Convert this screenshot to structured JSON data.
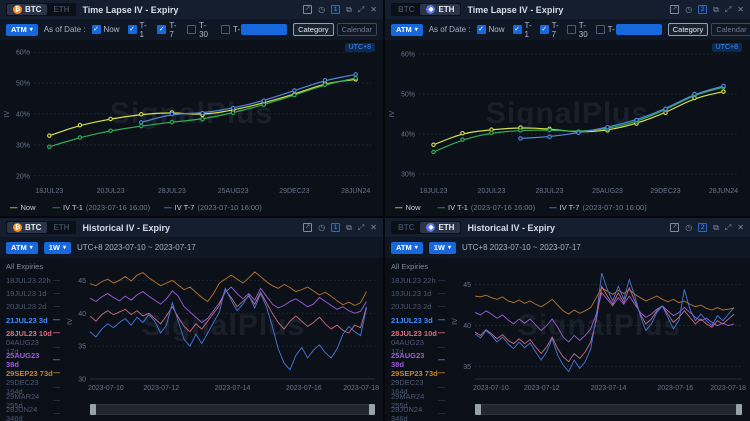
{
  "watermark": "SignalPlus",
  "icons": {
    "share": "↗",
    "history": "◷",
    "duplicate": "⧉",
    "fullscreen": "⤢",
    "close": "✕",
    "caret": "▾",
    "check": "✓",
    "dash": "—",
    "btc": "₿",
    "eth": "◆"
  },
  "panels": {
    "tl": {
      "tabs": {
        "btc": "BTC",
        "eth": "ETH"
      },
      "title": "Time Lapse IV - Expiry",
      "badge": "1",
      "toolbar": {
        "atm": "ATM",
        "as_of_label": "As of Date :",
        "checkboxes": [
          {
            "label": "Now",
            "checked": true
          },
          {
            "label": "T-1",
            "checked": true
          },
          {
            "label": "T-7",
            "checked": true
          },
          {
            "label": "T-30",
            "checked": false
          },
          {
            "label": "T-",
            "checked": false
          }
        ],
        "category": "Category",
        "calendar": "Calendar"
      },
      "utc": "UTC+8",
      "legend": [
        {
          "name": "Now",
          "date": "",
          "color": "#d7df4b"
        },
        {
          "name": "IV T-1",
          "date": "(2023-07-16 16:00)",
          "color": "#2fae55"
        },
        {
          "name": "IV T-7",
          "date": "(2023-07-10 16:00)",
          "color": "#4f87e0"
        }
      ],
      "chart_data": {
        "type": "line",
        "ylabel": "IV",
        "ylim": [
          18,
          62
        ],
        "yticks": [
          60,
          50,
          40,
          30,
          20
        ],
        "categories": [
          "18JUL23",
          "19JUL23",
          "20JUL23",
          "21JUL23",
          "28JUL23",
          "04AUG23",
          "25AUG23",
          "29SEP23",
          "29DEC23",
          "29MAR24",
          "28JUN24"
        ],
        "series": [
          {
            "name": "Now",
            "color": "#d7df4b",
            "values": [
              33.0,
              36.4,
              38.4,
              39.9,
              40.5,
              39.7,
              41.2,
              43.6,
              46.4,
              49.9,
              51.2
            ]
          },
          {
            "name": "IV T-1(2023-07-16 16:00)",
            "color": "#2fae55",
            "values": [
              29.4,
              32.4,
              34.6,
              36.1,
              37.4,
              38.3,
              40.4,
              43.0,
              46.1,
              49.5,
              51.6
            ]
          },
          {
            "name": "IV T-7(2023-07-10 16:00)",
            "color": "#4f87e0",
            "values": [
              null,
              null,
              null,
              37.3,
              40.0,
              40.3,
              41.9,
              44.3,
              47.6,
              50.9,
              52.8
            ]
          }
        ]
      }
    },
    "tr": {
      "tabs": {
        "btc": "BTC",
        "eth": "ETH"
      },
      "title": "Time Lapse IV - Expiry",
      "badge": "2",
      "toolbar": {
        "atm": "ATM",
        "as_of_label": "As of Date :",
        "checkboxes": [
          {
            "label": "Now",
            "checked": true
          },
          {
            "label": "T-1",
            "checked": true
          },
          {
            "label": "T-7",
            "checked": true
          },
          {
            "label": "T-30",
            "checked": false
          },
          {
            "label": "T-",
            "checked": false
          }
        ],
        "category": "Category",
        "calendar": "Calendar"
      },
      "utc": "UTC+8",
      "legend": [
        {
          "name": "Now",
          "date": "",
          "color": "#d7df4b"
        },
        {
          "name": "IV T-1",
          "date": "(2023-07-16 16:00)",
          "color": "#2fae55"
        },
        {
          "name": "IV T-7",
          "date": "(2023-07-10 16:00)",
          "color": "#4f87e0"
        }
      ],
      "chart_data": {
        "type": "line",
        "ylabel": "IV",
        "ylim": [
          28,
          62
        ],
        "yticks": [
          60,
          50,
          40,
          30
        ],
        "categories": [
          "18JUL23",
          "19JUL23",
          "20JUL23",
          "21JUL23",
          "28JUL23",
          "04AUG23",
          "25AUG23",
          "29SEP23",
          "29DEC23",
          "29MAR24",
          "28JUN24"
        ],
        "series": [
          {
            "name": "Now",
            "color": "#d7df4b",
            "values": [
              37.3,
              40.2,
              41.1,
              41.6,
              41.3,
              40.4,
              40.9,
              42.6,
              45.3,
              49.0,
              50.6
            ]
          },
          {
            "name": "IV T-1(2023-07-16 16:00)",
            "color": "#2fae55",
            "values": [
              35.5,
              38.6,
              40.3,
              40.9,
              41.0,
              40.6,
              41.3,
              43.1,
              46.0,
              49.8,
              51.7
            ]
          },
          {
            "name": "IV T-7(2023-07-10 16:00)",
            "color": "#4f87e0",
            "values": [
              null,
              null,
              null,
              38.9,
              39.3,
              40.3,
              41.7,
              43.5,
              46.3,
              50.0,
              52.0
            ]
          }
        ]
      }
    },
    "bl": {
      "tabs": {
        "btc": "BTC",
        "eth": "ETH"
      },
      "title": "Historical IV - Expiry",
      "badge": "1",
      "toolbar": {
        "atm": "ATM",
        "period": "1W",
        "range": "UTC+8 2023-07-10 ~ 2023-07-17"
      },
      "expiry_header": "All Expiries",
      "expiries": [
        {
          "label": "18JUL23 22h"
        },
        {
          "label": "19JUL23 1d"
        },
        {
          "label": "20JUL23 2d"
        },
        {
          "label": "21JUL23 3d",
          "color": "#3f8cff"
        },
        {
          "label": "28JUL23 10d",
          "color": "#e06a7a"
        },
        {
          "label": "04AUG23 17d"
        },
        {
          "label": "25AUG23 38d",
          "color": "#a05bd6"
        },
        {
          "label": "29SEP23 73d",
          "color": "#c8812e"
        },
        {
          "label": "29DEC23 164d"
        },
        {
          "label": "29MAR24 255d"
        },
        {
          "label": "28JUN24 346d"
        }
      ],
      "chart_data": {
        "type": "line",
        "ylabel": "IV",
        "ylim": [
          30,
          47.5
        ],
        "yticks": [
          45,
          40,
          35,
          30
        ],
        "x_ticks": [
          "2023-07-10",
          "2023-07-12",
          "2023-07-14",
          "2023-07-16",
          "2023-07-18"
        ],
        "series": [
          {
            "name": "29SEP23 73d",
            "color": "#b5752a",
            "values": [
              44.5,
              44.2,
              44.8,
              45.2,
              44.6,
              45.0,
              45.6,
              44.9,
              45.8,
              46.2,
              45.4,
              44.8,
              44.2,
              44.6,
              45.0,
              44.3,
              43.6,
              44.0,
              43.2,
              42.4,
              41.8,
              43.0,
              44.6,
              45.2,
              45.8,
              45.2,
              44.6,
              45.4,
              46.3,
              45.6,
              44.8,
              44.2,
              43.8,
              44.4,
              43.9,
              43.3,
              43.6,
              44.0,
              43.4,
              42.8,
              43.2,
              42.6,
              41.9,
              41.3,
              41.7,
              41.2,
              41.6,
              43.3
            ]
          },
          {
            "name": "25AUG23 38d",
            "color": "#9a5cd8",
            "values": [
              42.3,
              41.8,
              42.5,
              43.0,
              42.4,
              41.9,
              42.6,
              42.0,
              42.8,
              43.3,
              42.6,
              42.0,
              41.4,
              42.2,
              43.4,
              42.6,
              41.0,
              40.2,
              39.4,
              38.6,
              39.2,
              40.4,
              41.6,
              43.2,
              44.0,
              43.0,
              42.2,
              43.0,
              42.0,
              43.8,
              42.6,
              41.4,
              40.8,
              41.2,
              41.8,
              42.2,
              41.6,
              41.0,
              41.4,
              42.4,
              41.8,
              41.2,
              40.6,
              41.0,
              40.4,
              40.0,
              40.3,
              41.8
            ]
          },
          {
            "name": "28JUL23 10d",
            "color": "#c96a80",
            "values": [
              39.6,
              38.8,
              39.8,
              40.4,
              39.8,
              40.2,
              40.6,
              39.8,
              40.4,
              39.6,
              40.0,
              39.2,
              38.4,
              39.6,
              41.0,
              39.4,
              38.0,
              37.2,
              38.4,
              37.6,
              38.8,
              40.0,
              41.2,
              43.6,
              42.4,
              41.0,
              41.8,
              42.6,
              41.4,
              43.2,
              41.6,
              40.0,
              38.6,
              37.6,
              38.8,
              39.6,
              38.8,
              38.0,
              38.6,
              39.4,
              38.4,
              37.6,
              38.2,
              37.4,
              37.0,
              38.2,
              37.8,
              41.0
            ]
          },
          {
            "name": "21JUL23 3d",
            "color": "#4577de",
            "values": [
              37.2,
              36.4,
              37.6,
              38.4,
              37.8,
              38.6,
              39.2,
              38.2,
              39.4,
              38.6,
              39.8,
              38.8,
              37.0,
              38.2,
              41.6,
              38.8,
              36.0,
              35.0,
              36.8,
              35.4,
              37.0,
              38.6,
              40.2,
              43.8,
              42.0,
              40.4,
              41.4,
              42.8,
              40.8,
              43.0,
              41.0,
              38.0,
              34.6,
              32.4,
              31.4,
              33.6,
              34.8,
              33.2,
              34.4,
              35.2,
              34.0,
              33.2,
              34.6,
              36.8,
              38.0,
              37.2,
              36.6,
              40.8
            ]
          }
        ]
      }
    },
    "br": {
      "tabs": {
        "btc": "BTC",
        "eth": "ETH"
      },
      "title": "Historical IV - Expiry",
      "badge": "2",
      "toolbar": {
        "atm": "ATM",
        "period": "1W",
        "range": "UTC+8 2023-07-10 ~ 2023-07-17"
      },
      "expiry_header": "All Expiries",
      "expiries": [
        {
          "label": "18JUL23 22h"
        },
        {
          "label": "19JUL23 1d"
        },
        {
          "label": "20JUL23 2d"
        },
        {
          "label": "21JUL23 3d",
          "color": "#3f8cff"
        },
        {
          "label": "28JUL23 10d",
          "color": "#e06a7a"
        },
        {
          "label": "04AUG23 17d"
        },
        {
          "label": "25AUG23 38d",
          "color": "#a05bd6"
        },
        {
          "label": "29SEP23 73d",
          "color": "#c8812e"
        },
        {
          "label": "29DEC23 164d"
        },
        {
          "label": "29MAR24 255d"
        },
        {
          "label": "28JUN24 346d"
        }
      ],
      "chart_data": {
        "type": "line",
        "ylabel": "IV",
        "ylim": [
          33.5,
          47.5
        ],
        "yticks": [
          45,
          40,
          35
        ],
        "x_ticks": [
          "2023-07-10",
          "2023-07-12",
          "2023-07-14",
          "2023-07-16",
          "2023-07-18"
        ],
        "series": [
          {
            "name": "29SEP23 73d",
            "color": "#b5752a",
            "values": [
              43.6,
              43.5,
              43.7,
              43.4,
              43.2,
              43.5,
              43.0,
              42.8,
              43.1,
              42.7,
              43.0,
              42.6,
              42.3,
              42.7,
              43.2,
              42.5,
              41.8,
              41.4,
              41.9,
              41.5,
              41.8,
              42.2,
              43.4,
              44.6,
              44.2,
              43.8,
              44.3,
              43.9,
              44.4,
              43.8,
              43.4,
              43.0,
              43.3,
              43.6,
              43.2,
              42.9,
              43.2,
              42.8,
              43.0,
              42.6,
              42.3,
              42.5,
              42.1,
              41.9,
              42.2,
              41.9,
              42.0,
              42.1
            ]
          },
          {
            "name": "25AUG23 38d",
            "color": "#9a5cd8",
            "values": [
              41.6,
              41.3,
              41.8,
              41.4,
              40.9,
              41.3,
              40.7,
              40.2,
              40.8,
              40.3,
              40.8,
              40.1,
              39.4,
              40.0,
              40.8,
              39.8,
              38.6,
              38.0,
              38.8,
              38.2,
              38.8,
              39.6,
              41.4,
              44.0,
              43.2,
              42.4,
              43.4,
              42.6,
              43.6,
              42.6,
              41.6,
              41.0,
              41.4,
              42.0,
              42.4,
              41.8,
              41.2,
              41.6,
              42.2,
              41.6,
              41.0,
              40.6,
              40.9,
              40.4,
              40.0,
              40.3,
              40.0,
              40.2
            ]
          },
          {
            "name": "28JUL23 10d",
            "color": "#c96a80",
            "values": [
              39.2,
              38.8,
              39.5,
              39.0,
              38.4,
              38.9,
              38.2,
              37.8,
              38.4,
              37.8,
              38.3,
              37.4,
              36.6,
              37.4,
              38.6,
              37.2,
              36.2,
              35.6,
              36.6,
              36.0,
              36.8,
              38.0,
              40.6,
              44.8,
              43.6,
              42.6,
              44.0,
              42.8,
              44.6,
              43.0,
              41.4,
              40.2,
              40.8,
              41.8,
              42.4,
              41.4,
              40.4,
              41.0,
              41.8,
              41.0,
              40.2,
              40.8,
              40.2,
              39.8,
              40.6,
              40.2,
              40.8,
              41.4
            ]
          },
          {
            "name": "21JUL23 3d",
            "color": "#4577de",
            "values": [
              39.0,
              38.5,
              39.4,
              38.8,
              38.0,
              38.6,
              37.8,
              37.2,
              38.0,
              37.3,
              37.9,
              36.8,
              35.8,
              36.8,
              38.4,
              36.4,
              35.2,
              34.4,
              35.8,
              34.8,
              35.6,
              37.2,
              41.0,
              46.4,
              44.4,
              43.0,
              44.8,
              43.2,
              45.6,
              43.6,
              41.2,
              39.4,
              40.2,
              41.6,
              42.4,
              41.0,
              39.6,
              40.6,
              44.4,
              42.0,
              40.6,
              41.4,
              40.6,
              40.0,
              41.2,
              40.6,
              41.4,
              42.2
            ]
          }
        ]
      }
    }
  }
}
